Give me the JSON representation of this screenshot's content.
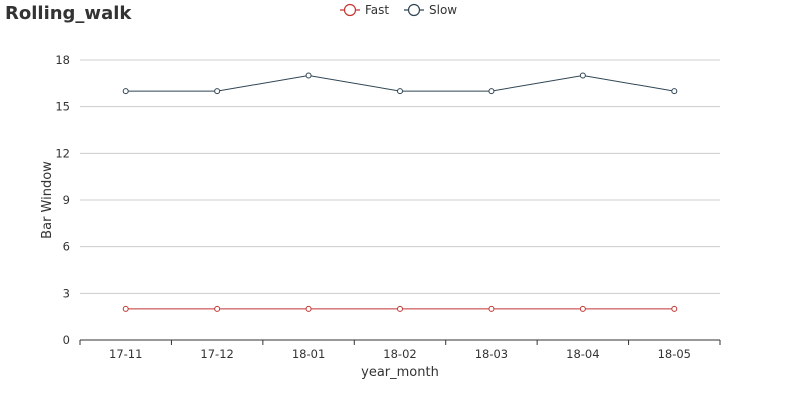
{
  "chart_data": {
    "type": "line",
    "title": "Rolling_walk",
    "xlabel": "year_month",
    "ylabel": "Bar Window",
    "categories": [
      "17-11",
      "17-12",
      "18-01",
      "18-02",
      "18-03",
      "18-04",
      "18-05"
    ],
    "yticks": [
      "0",
      "3",
      "6",
      "9",
      "12",
      "15",
      "18"
    ],
    "ylim": [
      0,
      18
    ],
    "grid": true,
    "legend_position": "top-center",
    "series": [
      {
        "name": "Fast",
        "color": "#c23531",
        "values": [
          2,
          2,
          2,
          2,
          2,
          2,
          2
        ]
      },
      {
        "name": "Slow",
        "color": "#2f4554",
        "values": [
          16,
          16,
          17,
          16,
          16,
          17,
          16
        ]
      }
    ]
  }
}
